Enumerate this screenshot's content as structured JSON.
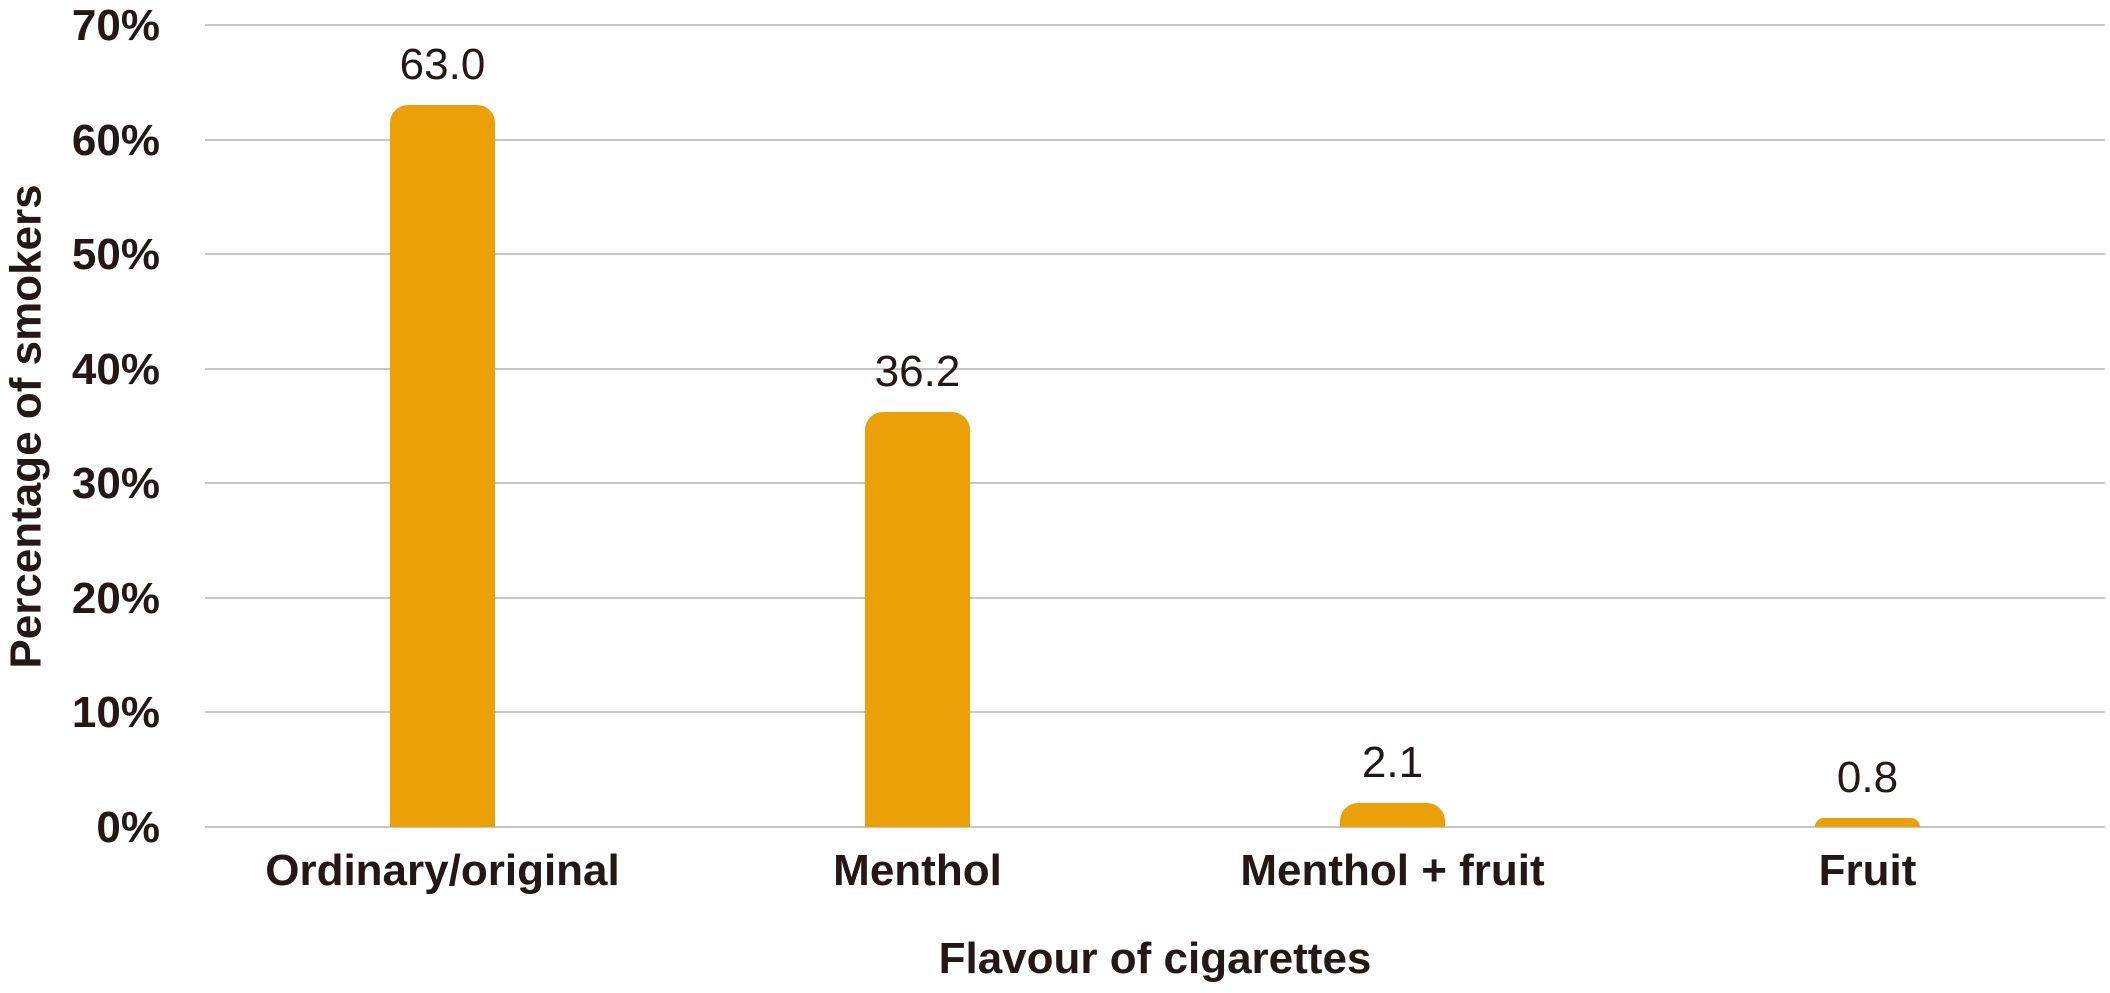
{
  "chart_data": {
    "type": "bar",
    "categories": [
      "Ordinary/original",
      "Menthol",
      "Menthol + fruit",
      "Fruit"
    ],
    "values": [
      63.0,
      36.2,
      2.1,
      0.8
    ],
    "value_labels": [
      "63.0",
      "36.2",
      "2.1",
      "0.8"
    ],
    "xlabel": "Flavour of cigarettes",
    "ylabel": "Percentage of smokers",
    "y_ticks": [
      "0%",
      "10%",
      "20%",
      "30%",
      "40%",
      "50%",
      "60%",
      "70%"
    ],
    "ylim": [
      0,
      70
    ],
    "grid": true,
    "legend": "none",
    "colors": {
      "bar": "#ECA008",
      "text": "#231815",
      "gridline": "#C6C6C6",
      "background": "#FFFFFF"
    }
  }
}
